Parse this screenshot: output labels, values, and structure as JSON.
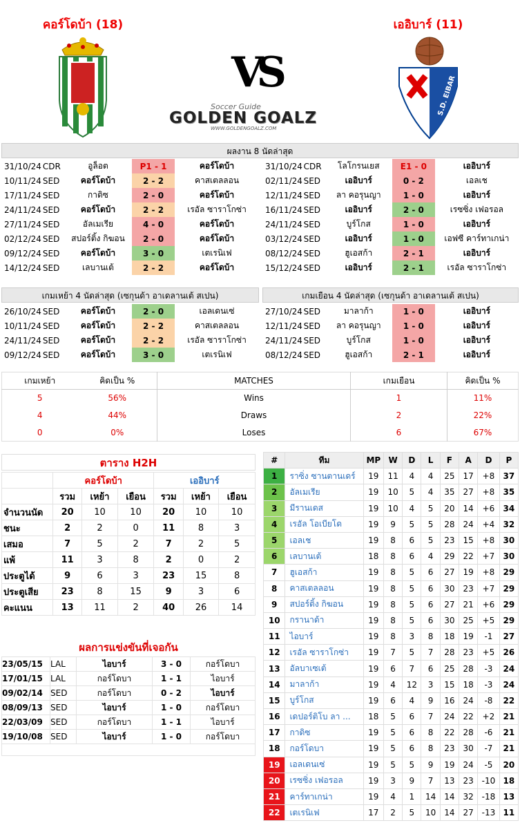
{
  "home": {
    "name": "คอร์โดบ้า (18)"
  },
  "away": {
    "name": "เออิบาร์ (11)"
  },
  "vs": "VS",
  "logo": {
    "small": "Soccer Guide",
    "big": "GOLDEN GOALZ",
    "url": "WWW.GOLDENGOALZ.COM"
  },
  "crest_eibar_text": "S.D. EIBAR",
  "last8_title": "ผลงาน 8 นัดล่าสุด",
  "last8_left": [
    {
      "d": "31/10/24",
      "c": "CDR",
      "h": "อูล็อต",
      "s": "P1 - 1",
      "a": "คอร์โดบ้า",
      "hb": false,
      "ab": true,
      "col": "red",
      "sred": true
    },
    {
      "d": "10/11/24",
      "c": "SED",
      "h": "คอร์โดบ้า",
      "s": "2 - 2",
      "a": "คาสเตลลอน",
      "hb": true,
      "ab": false,
      "col": "org"
    },
    {
      "d": "17/11/24",
      "c": "SED",
      "h": "กาดิซ",
      "s": "2 - 0",
      "a": "คอร์โดบ้า",
      "hb": false,
      "ab": true,
      "col": "red"
    },
    {
      "d": "24/11/24",
      "c": "SED",
      "h": "คอร์โดบ้า",
      "s": "2 - 2",
      "a": "เรอัล ซาราโกซ่า",
      "hb": true,
      "ab": false,
      "col": "org"
    },
    {
      "d": "27/11/24",
      "c": "SED",
      "h": "อัลเมเรีย",
      "s": "4 - 0",
      "a": "คอร์โดบ้า",
      "hb": false,
      "ab": true,
      "col": "red"
    },
    {
      "d": "02/12/24",
      "c": "SED",
      "h": "สปอร์ติ้ง กิฆอน",
      "s": "2 - 0",
      "a": "คอร์โดบ้า",
      "hb": false,
      "ab": true,
      "col": "red"
    },
    {
      "d": "09/12/24",
      "c": "SED",
      "h": "คอร์โดบ้า",
      "s": "3 - 0",
      "a": "เตเรนิเฟ",
      "hb": true,
      "ab": false,
      "col": "grn"
    },
    {
      "d": "14/12/24",
      "c": "SED",
      "h": "เลบานเต้",
      "s": "2 - 2",
      "a": "คอร์โดบ้า",
      "hb": false,
      "ab": true,
      "col": "org"
    }
  ],
  "last8_right": [
    {
      "d": "31/10/24",
      "c": "CDR",
      "h": "โลโกรนเยส",
      "s": "E1 - 0",
      "a": "เออิบาร์",
      "hb": false,
      "ab": true,
      "col": "red",
      "sred": true
    },
    {
      "d": "02/11/24",
      "c": "SED",
      "h": "เออิบาร์",
      "s": "0 - 2",
      "a": "เอลเช",
      "hb": true,
      "ab": false,
      "col": "red"
    },
    {
      "d": "12/11/24",
      "c": "SED",
      "h": "ลา คอรุนญา",
      "s": "1 - 0",
      "a": "เออิบาร์",
      "hb": false,
      "ab": true,
      "col": "red"
    },
    {
      "d": "16/11/24",
      "c": "SED",
      "h": "เออิบาร์",
      "s": "2 - 0",
      "a": "เรซซิ่ง เฟอรอล",
      "hb": true,
      "ab": false,
      "col": "grn"
    },
    {
      "d": "24/11/24",
      "c": "SED",
      "h": "บูร์โกส",
      "s": "1 - 0",
      "a": "เออิบาร์",
      "hb": false,
      "ab": true,
      "col": "red"
    },
    {
      "d": "03/12/24",
      "c": "SED",
      "h": "เออิบาร์",
      "s": "1 - 0",
      "a": "เอฟซี คาร์ทาเกน่า",
      "hb": true,
      "ab": false,
      "col": "grn"
    },
    {
      "d": "08/12/24",
      "c": "SED",
      "h": "ฮูเอสก้า",
      "s": "2 - 1",
      "a": "เออิบาร์",
      "hb": false,
      "ab": true,
      "col": "red"
    },
    {
      "d": "15/12/24",
      "c": "SED",
      "h": "เออิบาร์",
      "s": "2 - 1",
      "a": "เรอัล ซาราโกซ่า",
      "hb": true,
      "ab": false,
      "col": "grn"
    }
  ],
  "home4_title": "เกมเหย้า 4 นัดล่าสุด (เซกุนด้า อาเดลานเต้ สเปน)",
  "away4_title": "เกมเยือน 4 นัดล่าสุด (เซกุนด้า อาเดลานเต้ สเปน)",
  "home4": [
    {
      "d": "26/10/24",
      "c": "SED",
      "h": "คอร์โดบ้า",
      "s": "2 - 0",
      "a": "เอลเดนเซ่",
      "hb": true,
      "ab": false,
      "col": "grn"
    },
    {
      "d": "10/11/24",
      "c": "SED",
      "h": "คอร์โดบ้า",
      "s": "2 - 2",
      "a": "คาสเตลลอน",
      "hb": true,
      "ab": false,
      "col": "org"
    },
    {
      "d": "24/11/24",
      "c": "SED",
      "h": "คอร์โดบ้า",
      "s": "2 - 2",
      "a": "เรอัล ซาราโกซ่า",
      "hb": true,
      "ab": false,
      "col": "org"
    },
    {
      "d": "09/12/24",
      "c": "SED",
      "h": "คอร์โดบ้า",
      "s": "3 - 0",
      "a": "เตเรนิเฟ",
      "hb": true,
      "ab": false,
      "col": "grn"
    }
  ],
  "away4": [
    {
      "d": "27/10/24",
      "c": "SED",
      "h": "มาลาก้า",
      "s": "1 - 0",
      "a": "เออิบาร์",
      "hb": false,
      "ab": true,
      "col": "red"
    },
    {
      "d": "12/11/24",
      "c": "SED",
      "h": "ลา คอรุนญา",
      "s": "1 - 0",
      "a": "เออิบาร์",
      "hb": false,
      "ab": true,
      "col": "red"
    },
    {
      "d": "24/11/24",
      "c": "SED",
      "h": "บูร์โกส",
      "s": "1 - 0",
      "a": "เออิบาร์",
      "hb": false,
      "ab": true,
      "col": "red"
    },
    {
      "d": "08/12/24",
      "c": "SED",
      "h": "ฮูเอสก้า",
      "s": "2 - 1",
      "a": "เออิบาร์",
      "hb": false,
      "ab": true,
      "col": "red"
    }
  ],
  "stats": {
    "headers": [
      "เกมเหย้า",
      "คิดเป็น %",
      "MATCHES",
      "เกมเยือน",
      "คิดเป็น %"
    ],
    "rows": [
      {
        "hv": "5",
        "hp": "56%",
        "lbl": "Wins",
        "av": "1",
        "ap": "11%"
      },
      {
        "hv": "4",
        "hp": "44%",
        "lbl": "Draws",
        "av": "2",
        "ap": "22%"
      },
      {
        "hv": "0",
        "hp": "0%",
        "lbl": "Loses",
        "av": "6",
        "ap": "67%"
      }
    ]
  },
  "h2h": {
    "title": "ตาราง H2H",
    "home": "คอร์โดบ้า",
    "away": "เออิบาร์",
    "cols": [
      "รวม",
      "เหย้า",
      "เยือน",
      "รวม",
      "เหย้า",
      "เยือน"
    ],
    "rows": [
      {
        "l": "จำนวนนัด",
        "v": [
          "20",
          "10",
          "10",
          "20",
          "10",
          "10"
        ]
      },
      {
        "l": "ชนะ",
        "v": [
          "2",
          "2",
          "0",
          "11",
          "8",
          "3"
        ]
      },
      {
        "l": "เสมอ",
        "v": [
          "7",
          "5",
          "2",
          "7",
          "2",
          "5"
        ]
      },
      {
        "l": "แพ้",
        "v": [
          "11",
          "3",
          "8",
          "2",
          "0",
          "2"
        ]
      },
      {
        "l": "ประตูได้",
        "v": [
          "9",
          "6",
          "3",
          "23",
          "15",
          "8"
        ]
      },
      {
        "l": "ประตูเสีย",
        "v": [
          "23",
          "8",
          "15",
          "9",
          "3",
          "6"
        ]
      },
      {
        "l": "คะแนน",
        "v": [
          "13",
          "11",
          "2",
          "40",
          "26",
          "14"
        ]
      }
    ]
  },
  "results": {
    "title": "ผลการแข่งขันที่เจอกัน",
    "rows": [
      {
        "d": "23/05/15",
        "c": "LAL",
        "h": "ไอบาร์",
        "s": "3 - 0",
        "a": "กอร์โดบา",
        "hb": true,
        "ab": false
      },
      {
        "d": "17/01/15",
        "c": "LAL",
        "h": "กอร์โดบา",
        "s": "1 - 1",
        "a": "ไอบาร์",
        "hb": false,
        "ab": false
      },
      {
        "d": "09/02/14",
        "c": "SED",
        "h": "กอร์โดบา",
        "s": "0 - 2",
        "a": "ไอบาร์",
        "hb": false,
        "ab": true
      },
      {
        "d": "08/09/13",
        "c": "SED",
        "h": "ไอบาร์",
        "s": "1 - 0",
        "a": "กอร์โดบา",
        "hb": true,
        "ab": false
      },
      {
        "d": "22/03/09",
        "c": "SED",
        "h": "กอร์โดบา",
        "s": "1 - 1",
        "a": "ไอบาร์",
        "hb": false,
        "ab": false
      },
      {
        "d": "19/10/08",
        "c": "SED",
        "h": "ไอบาร์",
        "s": "1 - 0",
        "a": "กอร์โดบา",
        "hb": true,
        "ab": false
      }
    ]
  },
  "league": {
    "headers": [
      "#",
      "ทีม",
      "MP",
      "W",
      "D",
      "L",
      "F",
      "A",
      "D",
      "P"
    ],
    "rows": [
      {
        "p": "1",
        "t": "ราซิ่ง ซานตานเดร์",
        "v": [
          "19",
          "11",
          "4",
          "4",
          "25",
          "17",
          "+8",
          "37"
        ],
        "z": "g1"
      },
      {
        "p": "2",
        "t": "อัลเมเรีย",
        "v": [
          "19",
          "10",
          "5",
          "4",
          "35",
          "27",
          "+8",
          "35"
        ],
        "z": "g2"
      },
      {
        "p": "3",
        "t": "มีรานเดส",
        "v": [
          "19",
          "10",
          "4",
          "5",
          "20",
          "14",
          "+6",
          "34"
        ],
        "z": "g3"
      },
      {
        "p": "4",
        "t": "เรอัล โอเบียโด",
        "v": [
          "19",
          "9",
          "5",
          "5",
          "28",
          "24",
          "+4",
          "32"
        ],
        "z": "g3"
      },
      {
        "p": "5",
        "t": "เอลเช",
        "v": [
          "19",
          "8",
          "6",
          "5",
          "23",
          "15",
          "+8",
          "30"
        ],
        "z": "g3"
      },
      {
        "p": "6",
        "t": "เลบานเต้",
        "v": [
          "18",
          "8",
          "6",
          "4",
          "29",
          "22",
          "+7",
          "30"
        ],
        "z": "g3"
      },
      {
        "p": "7",
        "t": "ฮูเอสก้า",
        "v": [
          "19",
          "8",
          "5",
          "6",
          "27",
          "19",
          "+8",
          "29"
        ],
        "z": "n"
      },
      {
        "p": "8",
        "t": "คาสเตลลอน",
        "v": [
          "19",
          "8",
          "5",
          "6",
          "30",
          "23",
          "+7",
          "29"
        ],
        "z": "n"
      },
      {
        "p": "9",
        "t": "สปอร์ติ้ง กิฆอน",
        "v": [
          "19",
          "8",
          "5",
          "6",
          "27",
          "21",
          "+6",
          "29"
        ],
        "z": "n"
      },
      {
        "p": "10",
        "t": "กรานาด้า",
        "v": [
          "19",
          "8",
          "5",
          "6",
          "30",
          "25",
          "+5",
          "29"
        ],
        "z": "n"
      },
      {
        "p": "11",
        "t": "ไอบาร์",
        "v": [
          "19",
          "8",
          "3",
          "8",
          "18",
          "19",
          "-1",
          "27"
        ],
        "z": "n"
      },
      {
        "p": "12",
        "t": "เรอัล ซาราโกซ่า",
        "v": [
          "19",
          "7",
          "5",
          "7",
          "28",
          "23",
          "+5",
          "26"
        ],
        "z": "n"
      },
      {
        "p": "13",
        "t": "อัลบาเซเต้",
        "v": [
          "19",
          "6",
          "7",
          "6",
          "25",
          "28",
          "-3",
          "24"
        ],
        "z": "n"
      },
      {
        "p": "14",
        "t": "มาลาก้า",
        "v": [
          "19",
          "4",
          "12",
          "3",
          "15",
          "18",
          "-3",
          "24"
        ],
        "z": "n"
      },
      {
        "p": "15",
        "t": "บูร์โกส",
        "v": [
          "19",
          "6",
          "4",
          "9",
          "16",
          "24",
          "-8",
          "22"
        ],
        "z": "n"
      },
      {
        "p": "16",
        "t": "เดปอร์ติโบ ลา ...",
        "v": [
          "18",
          "5",
          "6",
          "7",
          "24",
          "22",
          "+2",
          "21"
        ],
        "z": "n"
      },
      {
        "p": "17",
        "t": "กาดิซ",
        "v": [
          "19",
          "5",
          "6",
          "8",
          "22",
          "28",
          "-6",
          "21"
        ],
        "z": "n"
      },
      {
        "p": "18",
        "t": "กอร์โดบา",
        "v": [
          "19",
          "5",
          "6",
          "8",
          "23",
          "30",
          "-7",
          "21"
        ],
        "z": "n"
      },
      {
        "p": "19",
        "t": "เอลเดนเซ่",
        "v": [
          "19",
          "5",
          "5",
          "9",
          "19",
          "24",
          "-5",
          "20"
        ],
        "z": "r"
      },
      {
        "p": "20",
        "t": "เรซซิ่ง เฟอรอล",
        "v": [
          "19",
          "3",
          "9",
          "7",
          "13",
          "23",
          "-10",
          "18"
        ],
        "z": "r"
      },
      {
        "p": "21",
        "t": "คาร์ทาเกน่า",
        "v": [
          "19",
          "4",
          "1",
          "14",
          "14",
          "32",
          "-18",
          "13"
        ],
        "z": "r"
      },
      {
        "p": "22",
        "t": "เตเรนิเฟ",
        "v": [
          "17",
          "2",
          "5",
          "10",
          "14",
          "27",
          "-13",
          "11"
        ],
        "z": "r"
      }
    ]
  }
}
